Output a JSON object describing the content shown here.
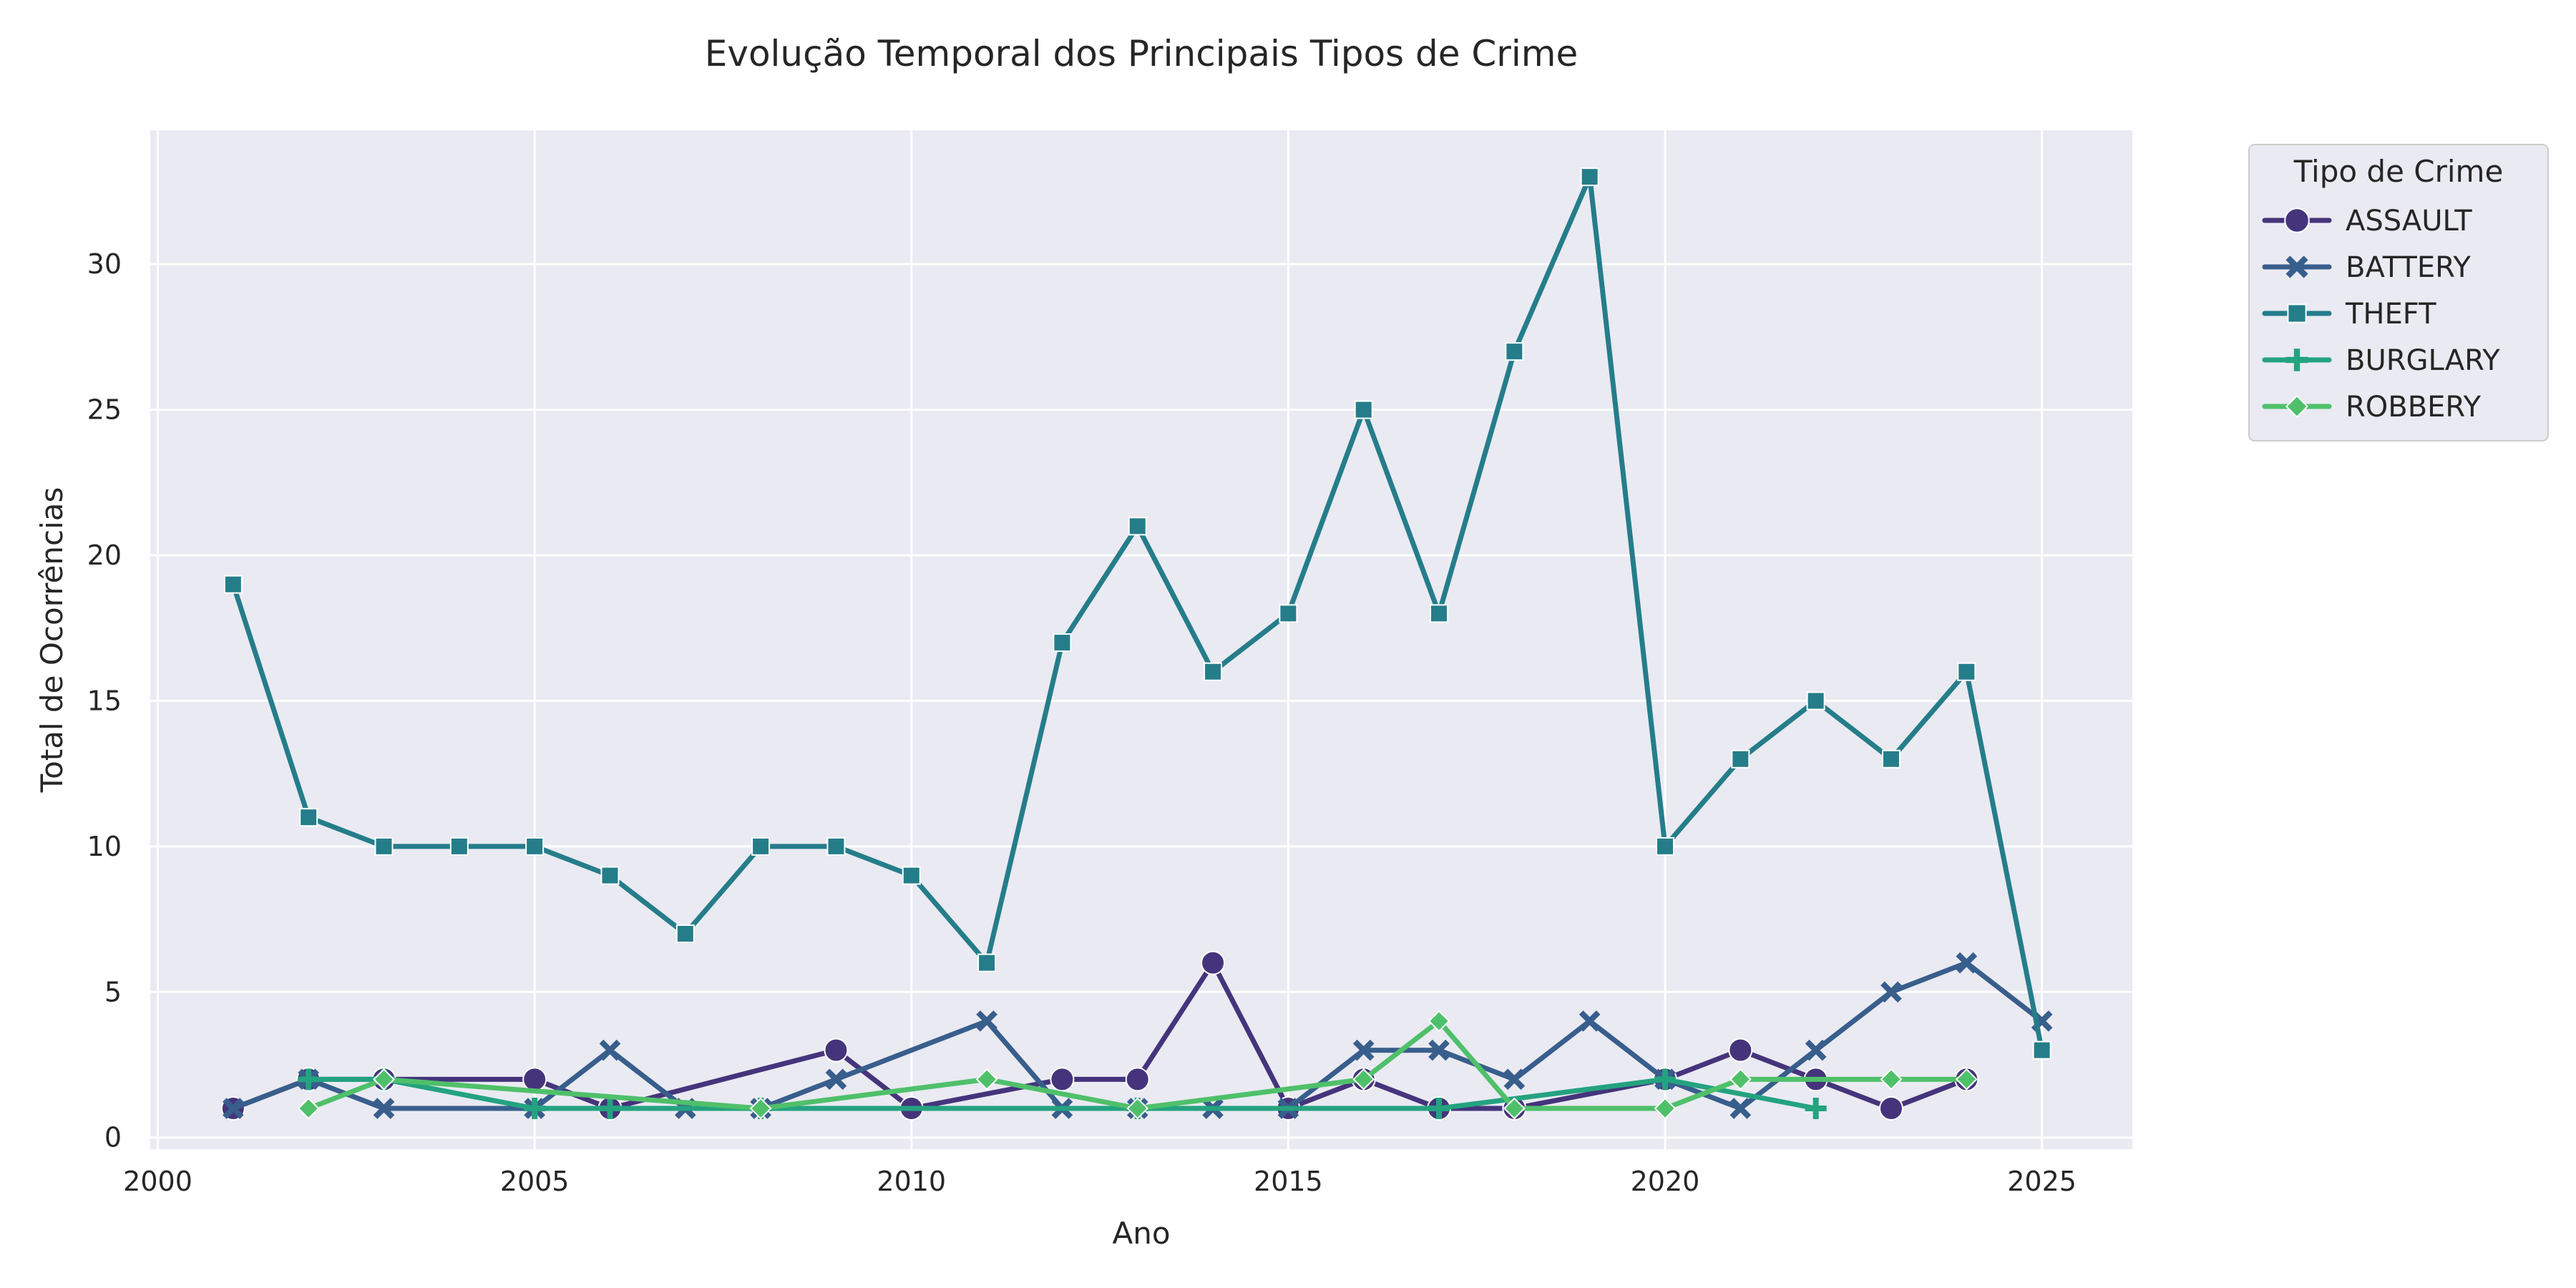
{
  "chart_data": {
    "type": "line",
    "title": "Evolução Temporal dos Principais Tipos de Crime",
    "xlabel": "Ano",
    "ylabel": "Total de Ocorrências",
    "xlim": [
      1999.9,
      2026.2
    ],
    "ylim": [
      -0.4,
      34.6
    ],
    "xticks": [
      2000,
      2005,
      2010,
      2015,
      2020,
      2025
    ],
    "yticks": [
      0,
      5,
      10,
      15,
      20,
      25,
      30
    ],
    "grid": true,
    "legend": {
      "title": "Tipo de Crime",
      "placement": "outside-top-right"
    },
    "series": [
      {
        "name": "ASSAULT",
        "color": "#45347c",
        "marker": "circle",
        "x": [
          2001,
          2002,
          2003,
          2005,
          2006,
          2009,
          2010,
          2012,
          2013,
          2014,
          2015,
          2016,
          2017,
          2018,
          2020,
          2021,
          2022,
          2023,
          2024
        ],
        "y": [
          1,
          2,
          2,
          2,
          1,
          3,
          1,
          2,
          2,
          6,
          1,
          2,
          1,
          1,
          2,
          3,
          2,
          1,
          2
        ]
      },
      {
        "name": "BATTERY",
        "color": "#385e8c",
        "marker": "x",
        "x": [
          2001,
          2002,
          2003,
          2005,
          2006,
          2007,
          2008,
          2009,
          2011,
          2012,
          2013,
          2014,
          2015,
          2016,
          2017,
          2018,
          2019,
          2020,
          2021,
          2022,
          2023,
          2024,
          2025
        ],
        "y": [
          1,
          2,
          1,
          1,
          3,
          1,
          1,
          2,
          4,
          1,
          1,
          1,
          1,
          3,
          3,
          2,
          4,
          2,
          1,
          3,
          5,
          6,
          4
        ]
      },
      {
        "name": "THEFT",
        "color": "#257d8a",
        "marker": "square",
        "x": [
          2001,
          2002,
          2003,
          2004,
          2005,
          2006,
          2007,
          2008,
          2009,
          2010,
          2011,
          2012,
          2013,
          2014,
          2015,
          2016,
          2017,
          2018,
          2019,
          2020,
          2021,
          2022,
          2023,
          2024,
          2025
        ],
        "y": [
          19,
          11,
          10,
          10,
          10,
          9,
          7,
          10,
          10,
          9,
          6,
          17,
          21,
          16,
          18,
          25,
          18,
          27,
          33,
          10,
          13,
          15,
          13,
          16,
          3
        ]
      },
      {
        "name": "BURGLARY",
        "color": "#24a37f",
        "marker": "plus",
        "x": [
          2002,
          2003,
          2005,
          2006,
          2008,
          2013,
          2017,
          2020,
          2022
        ],
        "y": [
          2,
          2,
          1,
          1,
          1,
          1,
          1,
          2,
          1
        ]
      },
      {
        "name": "ROBBERY",
        "color": "#4fc06a",
        "marker": "diamond",
        "x": [
          2002,
          2003,
          2008,
          2011,
          2013,
          2016,
          2017,
          2018,
          2020,
          2021,
          2023,
          2024
        ],
        "y": [
          1,
          2,
          1,
          2,
          1,
          2,
          4,
          1,
          1,
          2,
          2,
          2
        ]
      }
    ]
  }
}
